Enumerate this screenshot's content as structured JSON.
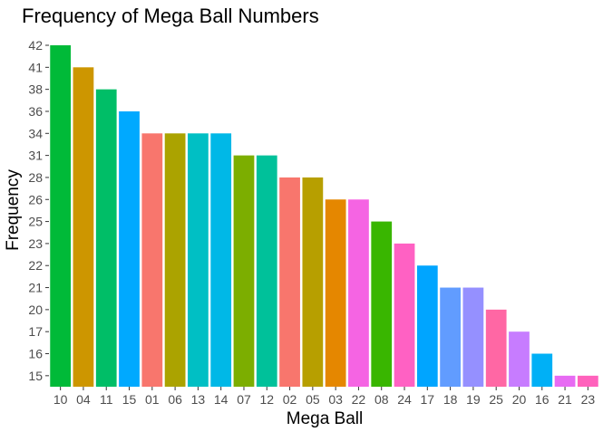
{
  "chart_data": {
    "type": "bar",
    "title": "Frequency of Mega Ball Numbers",
    "xlabel": "Mega Ball",
    "ylabel": "Frequency",
    "grid": false,
    "categories": [
      "10",
      "04",
      "11",
      "15",
      "01",
      "06",
      "13",
      "14",
      "07",
      "12",
      "02",
      "05",
      "03",
      "22",
      "08",
      "24",
      "17",
      "18",
      "19",
      "25",
      "20",
      "16",
      "21",
      "23"
    ],
    "values": [
      42,
      41,
      38,
      36,
      34,
      34,
      34,
      34,
      31,
      31,
      28,
      28,
      26,
      26,
      25,
      23,
      22,
      21,
      21,
      20,
      17,
      16,
      15,
      15
    ],
    "y_ticks": [
      "15",
      "16",
      "17",
      "20",
      "21",
      "22",
      "23",
      "25",
      "26",
      "28",
      "31",
      "34",
      "36",
      "38",
      "41",
      "42"
    ],
    "colors": [
      "#00BA38",
      "#CD9600",
      "#00BE67",
      "#00A9FF",
      "#F8766D",
      "#ABA300",
      "#00BFC4",
      "#00B8E7",
      "#7CAE00",
      "#00C19A",
      "#F8766D",
      "#B79F00",
      "#E58700",
      "#F564E3",
      "#39B600",
      "#FF61C3",
      "#00A5FF",
      "#619CFF",
      "#9590FF",
      "#FF67A4",
      "#C77CFF",
      "#00B0F6",
      "#E76BF3",
      "#FF62BC"
    ]
  }
}
